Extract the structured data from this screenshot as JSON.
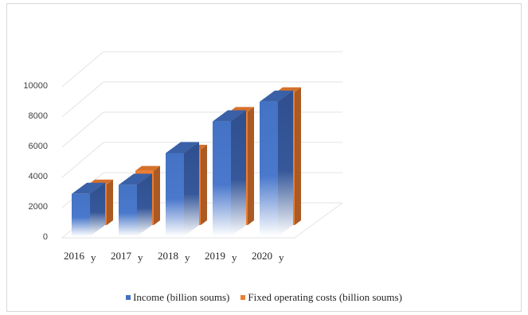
{
  "chart_data": {
    "type": "bar",
    "categories": [
      "2016",
      "2017",
      "2018",
      "2019",
      "2020"
    ],
    "category_suffix": "y",
    "series": [
      {
        "name": "Income (billion soums)",
        "color": "#4472C4",
        "values": [
          2800,
          3400,
          5500,
          7600,
          8900
        ]
      },
      {
        "name": "Fixed operating costs (billion soums)",
        "color": "#ED7D31",
        "values": [
          2700,
          3600,
          5000,
          7500,
          8800
        ]
      }
    ],
    "y_ticks": [
      "0",
      "2000",
      "4000",
      "6000",
      "8000",
      "10000"
    ],
    "ylim": [
      0,
      10000
    ],
    "grid": true,
    "legend_position": "bottom"
  }
}
